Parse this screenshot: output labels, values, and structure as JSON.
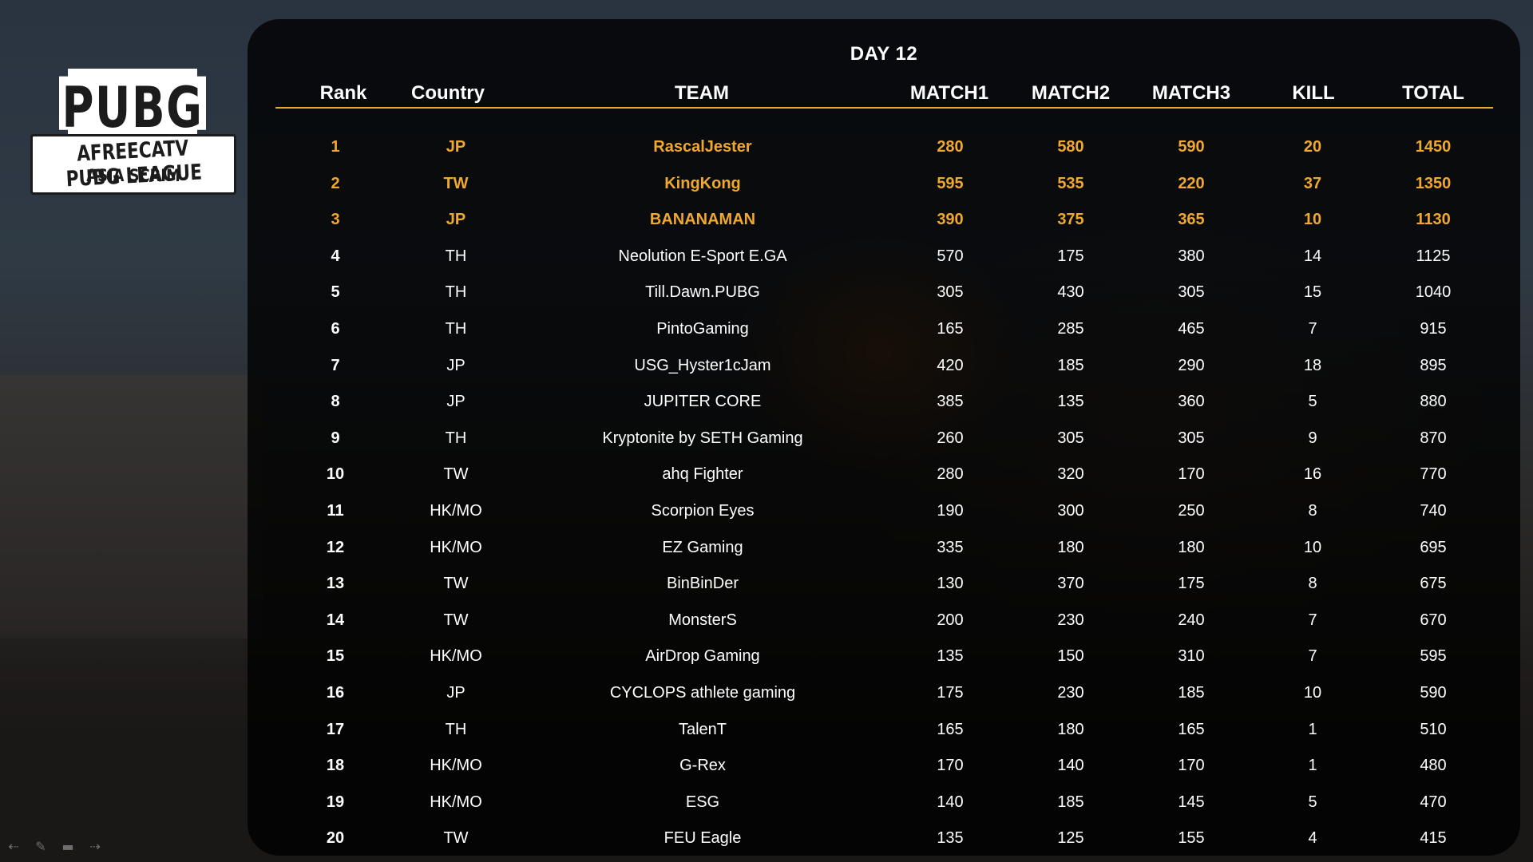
{
  "logo": {
    "top_text": "PUBG",
    "line1": "AFREECATV PUBG LEAGUE",
    "line2": "ASIA SCRIM"
  },
  "title": "DAY 12",
  "columns": [
    "Rank",
    "Country",
    "TEAM",
    "MATCH1",
    "MATCH2",
    "MATCH3",
    "KILL",
    "TOTAL"
  ],
  "highlight_color": "#f0a82e",
  "highlighted_ranks": [
    1,
    2,
    3
  ],
  "rows": [
    {
      "rank": "1",
      "country": "JP",
      "team": "RascalJester",
      "m1": "280",
      "m2": "580",
      "m3": "590",
      "kill": "20",
      "total": "1450"
    },
    {
      "rank": "2",
      "country": "TW",
      "team": "KingKong",
      "m1": "595",
      "m2": "535",
      "m3": "220",
      "kill": "37",
      "total": "1350"
    },
    {
      "rank": "3",
      "country": "JP",
      "team": "BANANAMAN",
      "m1": "390",
      "m2": "375",
      "m3": "365",
      "kill": "10",
      "total": "1130"
    },
    {
      "rank": "4",
      "country": "TH",
      "team": "Neolution E-Sport E.GA",
      "m1": "570",
      "m2": "175",
      "m3": "380",
      "kill": "14",
      "total": "1125"
    },
    {
      "rank": "5",
      "country": "TH",
      "team": "Till.Dawn.PUBG",
      "m1": "305",
      "m2": "430",
      "m3": "305",
      "kill": "15",
      "total": "1040"
    },
    {
      "rank": "6",
      "country": "TH",
      "team": "PintoGaming",
      "m1": "165",
      "m2": "285",
      "m3": "465",
      "kill": "7",
      "total": "915"
    },
    {
      "rank": "7",
      "country": "JP",
      "team": "USG_Hyster1cJam",
      "m1": "420",
      "m2": "185",
      "m3": "290",
      "kill": "18",
      "total": "895"
    },
    {
      "rank": "8",
      "country": "JP",
      "team": "JUPITER CORE",
      "m1": "385",
      "m2": "135",
      "m3": "360",
      "kill": "5",
      "total": "880"
    },
    {
      "rank": "9",
      "country": "TH",
      "team": "Kryptonite by SETH Gaming",
      "m1": "260",
      "m2": "305",
      "m3": "305",
      "kill": "9",
      "total": "870"
    },
    {
      "rank": "10",
      "country": "TW",
      "team": "ahq Fighter",
      "m1": "280",
      "m2": "320",
      "m3": "170",
      "kill": "16",
      "total": "770"
    },
    {
      "rank": "11",
      "country": "HK/MO",
      "team": "Scorpion Eyes",
      "m1": "190",
      "m2": "300",
      "m3": "250",
      "kill": "8",
      "total": "740"
    },
    {
      "rank": "12",
      "country": "HK/MO",
      "team": "EZ Gaming",
      "m1": "335",
      "m2": "180",
      "m3": "180",
      "kill": "10",
      "total": "695"
    },
    {
      "rank": "13",
      "country": "TW",
      "team": "BinBinDer",
      "m1": "130",
      "m2": "370",
      "m3": "175",
      "kill": "8",
      "total": "675"
    },
    {
      "rank": "14",
      "country": "TW",
      "team": "MonsterS",
      "m1": "200",
      "m2": "230",
      "m3": "240",
      "kill": "7",
      "total": "670"
    },
    {
      "rank": "15",
      "country": "HK/MO",
      "team": "AirDrop Gaming",
      "m1": "135",
      "m2": "150",
      "m3": "310",
      "kill": "7",
      "total": "595"
    },
    {
      "rank": "16",
      "country": "JP",
      "team": "CYCLOPS athlete gaming",
      "m1": "175",
      "m2": "230",
      "m3": "185",
      "kill": "10",
      "total": "590"
    },
    {
      "rank": "17",
      "country": "TH",
      "team": "TalenT",
      "m1": "165",
      "m2": "180",
      "m3": "165",
      "kill": "1",
      "total": "510"
    },
    {
      "rank": "18",
      "country": "HK/MO",
      "team": "G-Rex",
      "m1": "170",
      "m2": "140",
      "m3": "170",
      "kill": "1",
      "total": "480"
    },
    {
      "rank": "19",
      "country": "HK/MO",
      "team": "ESG",
      "m1": "140",
      "m2": "185",
      "m3": "145",
      "kill": "5",
      "total": "470"
    },
    {
      "rank": "20",
      "country": "TW",
      "team": "FEU Eagle",
      "m1": "135",
      "m2": "125",
      "m3": "155",
      "kill": "4",
      "total": "415"
    }
  ],
  "nav": {
    "icons": [
      "arrow-left-icon",
      "pen-icon",
      "slides-icon",
      "arrow-right-icon"
    ]
  }
}
